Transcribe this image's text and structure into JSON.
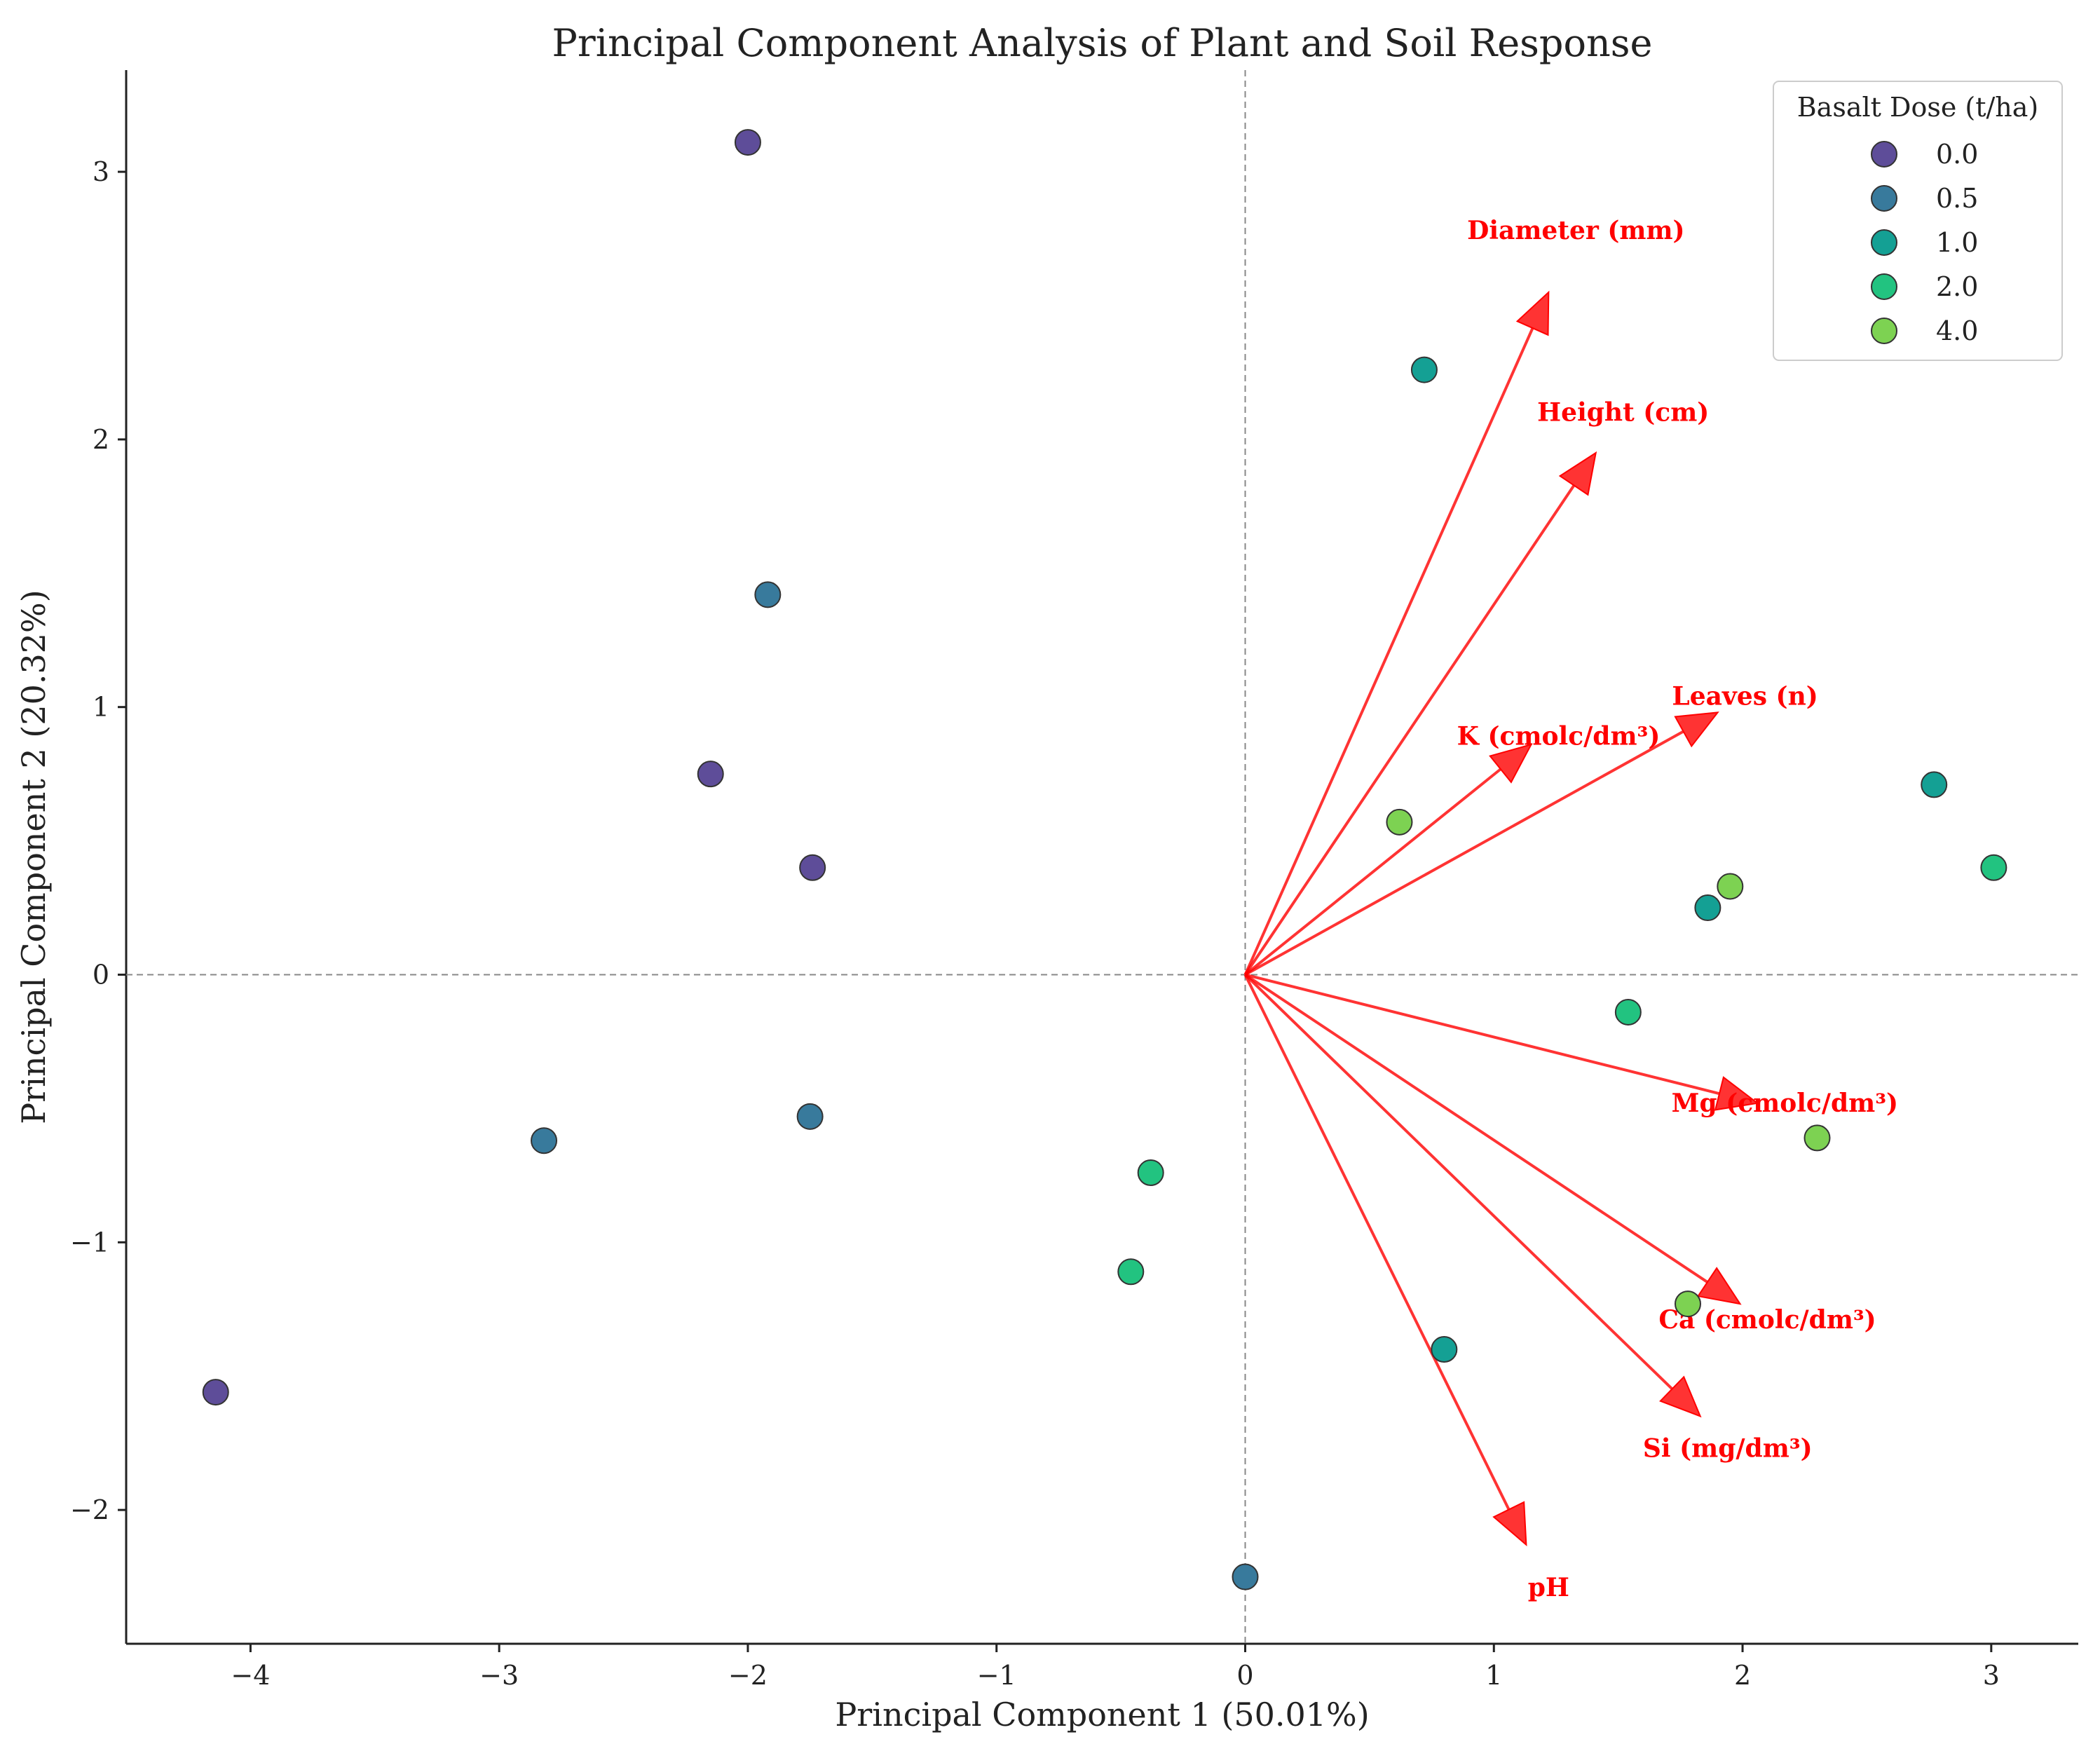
{
  "chart_data": {
    "type": "scatter",
    "title": "Principal Component Analysis of Plant and Soil Response",
    "xlabel": "Principal Component 1 (50.01%)",
    "ylabel": "Principal Component 2 (20.32%)",
    "xlim": [
      -4.5,
      3.35
    ],
    "ylim": [
      -2.5,
      3.38
    ],
    "xticks": [
      -4,
      -3,
      -2,
      -1,
      0,
      1,
      2,
      3
    ],
    "yticks": [
      -2,
      -1,
      0,
      1,
      2,
      3
    ],
    "xtick_labels": [
      "−4",
      "−3",
      "−2",
      "−1",
      "0",
      "1",
      "2",
      "3"
    ],
    "ytick_labels": [
      "−2",
      "−1",
      "0",
      "1",
      "2",
      "3"
    ],
    "grid": false,
    "reference_lines": {
      "x": 0,
      "y": 0,
      "style": "dashed"
    },
    "legend": {
      "title": "Basalt Dose (t/ha)",
      "placement": "top-right",
      "entries": [
        {
          "label": "0.0",
          "color": "#5e4d99"
        },
        {
          "label": "0.5",
          "color": "#387a9c"
        },
        {
          "label": "1.0",
          "color": "#14a094"
        },
        {
          "label": "2.0",
          "color": "#22c380"
        },
        {
          "label": "4.0",
          "color": "#7dd252"
        }
      ]
    },
    "series": [
      {
        "name": "0.0",
        "color": "#5e4d99",
        "points": [
          [
            -2.0,
            3.11
          ],
          [
            -2.15,
            0.75
          ],
          [
            -1.74,
            0.4
          ],
          [
            -4.14,
            -1.56
          ]
        ]
      },
      {
        "name": "0.5",
        "color": "#387a9c",
        "points": [
          [
            -1.92,
            1.42
          ],
          [
            -2.82,
            -0.62
          ],
          [
            -1.75,
            -0.53
          ],
          [
            0.0,
            -2.25
          ]
        ]
      },
      {
        "name": "1.0",
        "color": "#14a094",
        "points": [
          [
            0.72,
            2.26
          ],
          [
            2.77,
            0.71
          ],
          [
            1.86,
            0.25
          ],
          [
            0.8,
            -1.4
          ]
        ]
      },
      {
        "name": "2.0",
        "color": "#22c380",
        "points": [
          [
            3.01,
            0.4
          ],
          [
            1.54,
            -0.14
          ],
          [
            -0.38,
            -0.74
          ],
          [
            -0.46,
            -1.11
          ]
        ]
      },
      {
        "name": "4.0",
        "color": "#7dd252",
        "points": [
          [
            0.62,
            0.57
          ],
          [
            1.95,
            0.33
          ],
          [
            2.3,
            -0.61
          ],
          [
            1.78,
            -1.23
          ]
        ]
      }
    ],
    "loadings": {
      "color": "#ff0000",
      "vectors": [
        {
          "label": "Diameter (mm)",
          "x": 1.22,
          "y": 2.55,
          "label_x": 1.33,
          "label_y": 2.78
        },
        {
          "label": "Height (cm)",
          "x": 1.41,
          "y": 1.95,
          "label_x": 1.52,
          "label_y": 2.1
        },
        {
          "label": "Leaves (n)",
          "x": 1.9,
          "y": 0.98,
          "label_x": 2.01,
          "label_y": 1.04
        },
        {
          "label": "K (cmolc/dm³)",
          "x": 1.15,
          "y": 0.86,
          "label_x": 1.26,
          "label_y": 0.89
        },
        {
          "label": "Mg (cmolc/dm³)",
          "x": 2.06,
          "y": -0.48,
          "label_x": 2.17,
          "label_y": -0.48
        },
        {
          "label": "Ca (cmolc/dm³)",
          "x": 1.99,
          "y": -1.23,
          "label_x": 2.1,
          "label_y": -1.29
        },
        {
          "label": "Si (mg/dm³)",
          "x": 1.83,
          "y": -1.65,
          "label_x": 1.94,
          "label_y": -1.77
        },
        {
          "label": "pH",
          "x": 1.13,
          "y": -2.13,
          "label_x": 1.22,
          "label_y": -2.29
        }
      ]
    }
  }
}
